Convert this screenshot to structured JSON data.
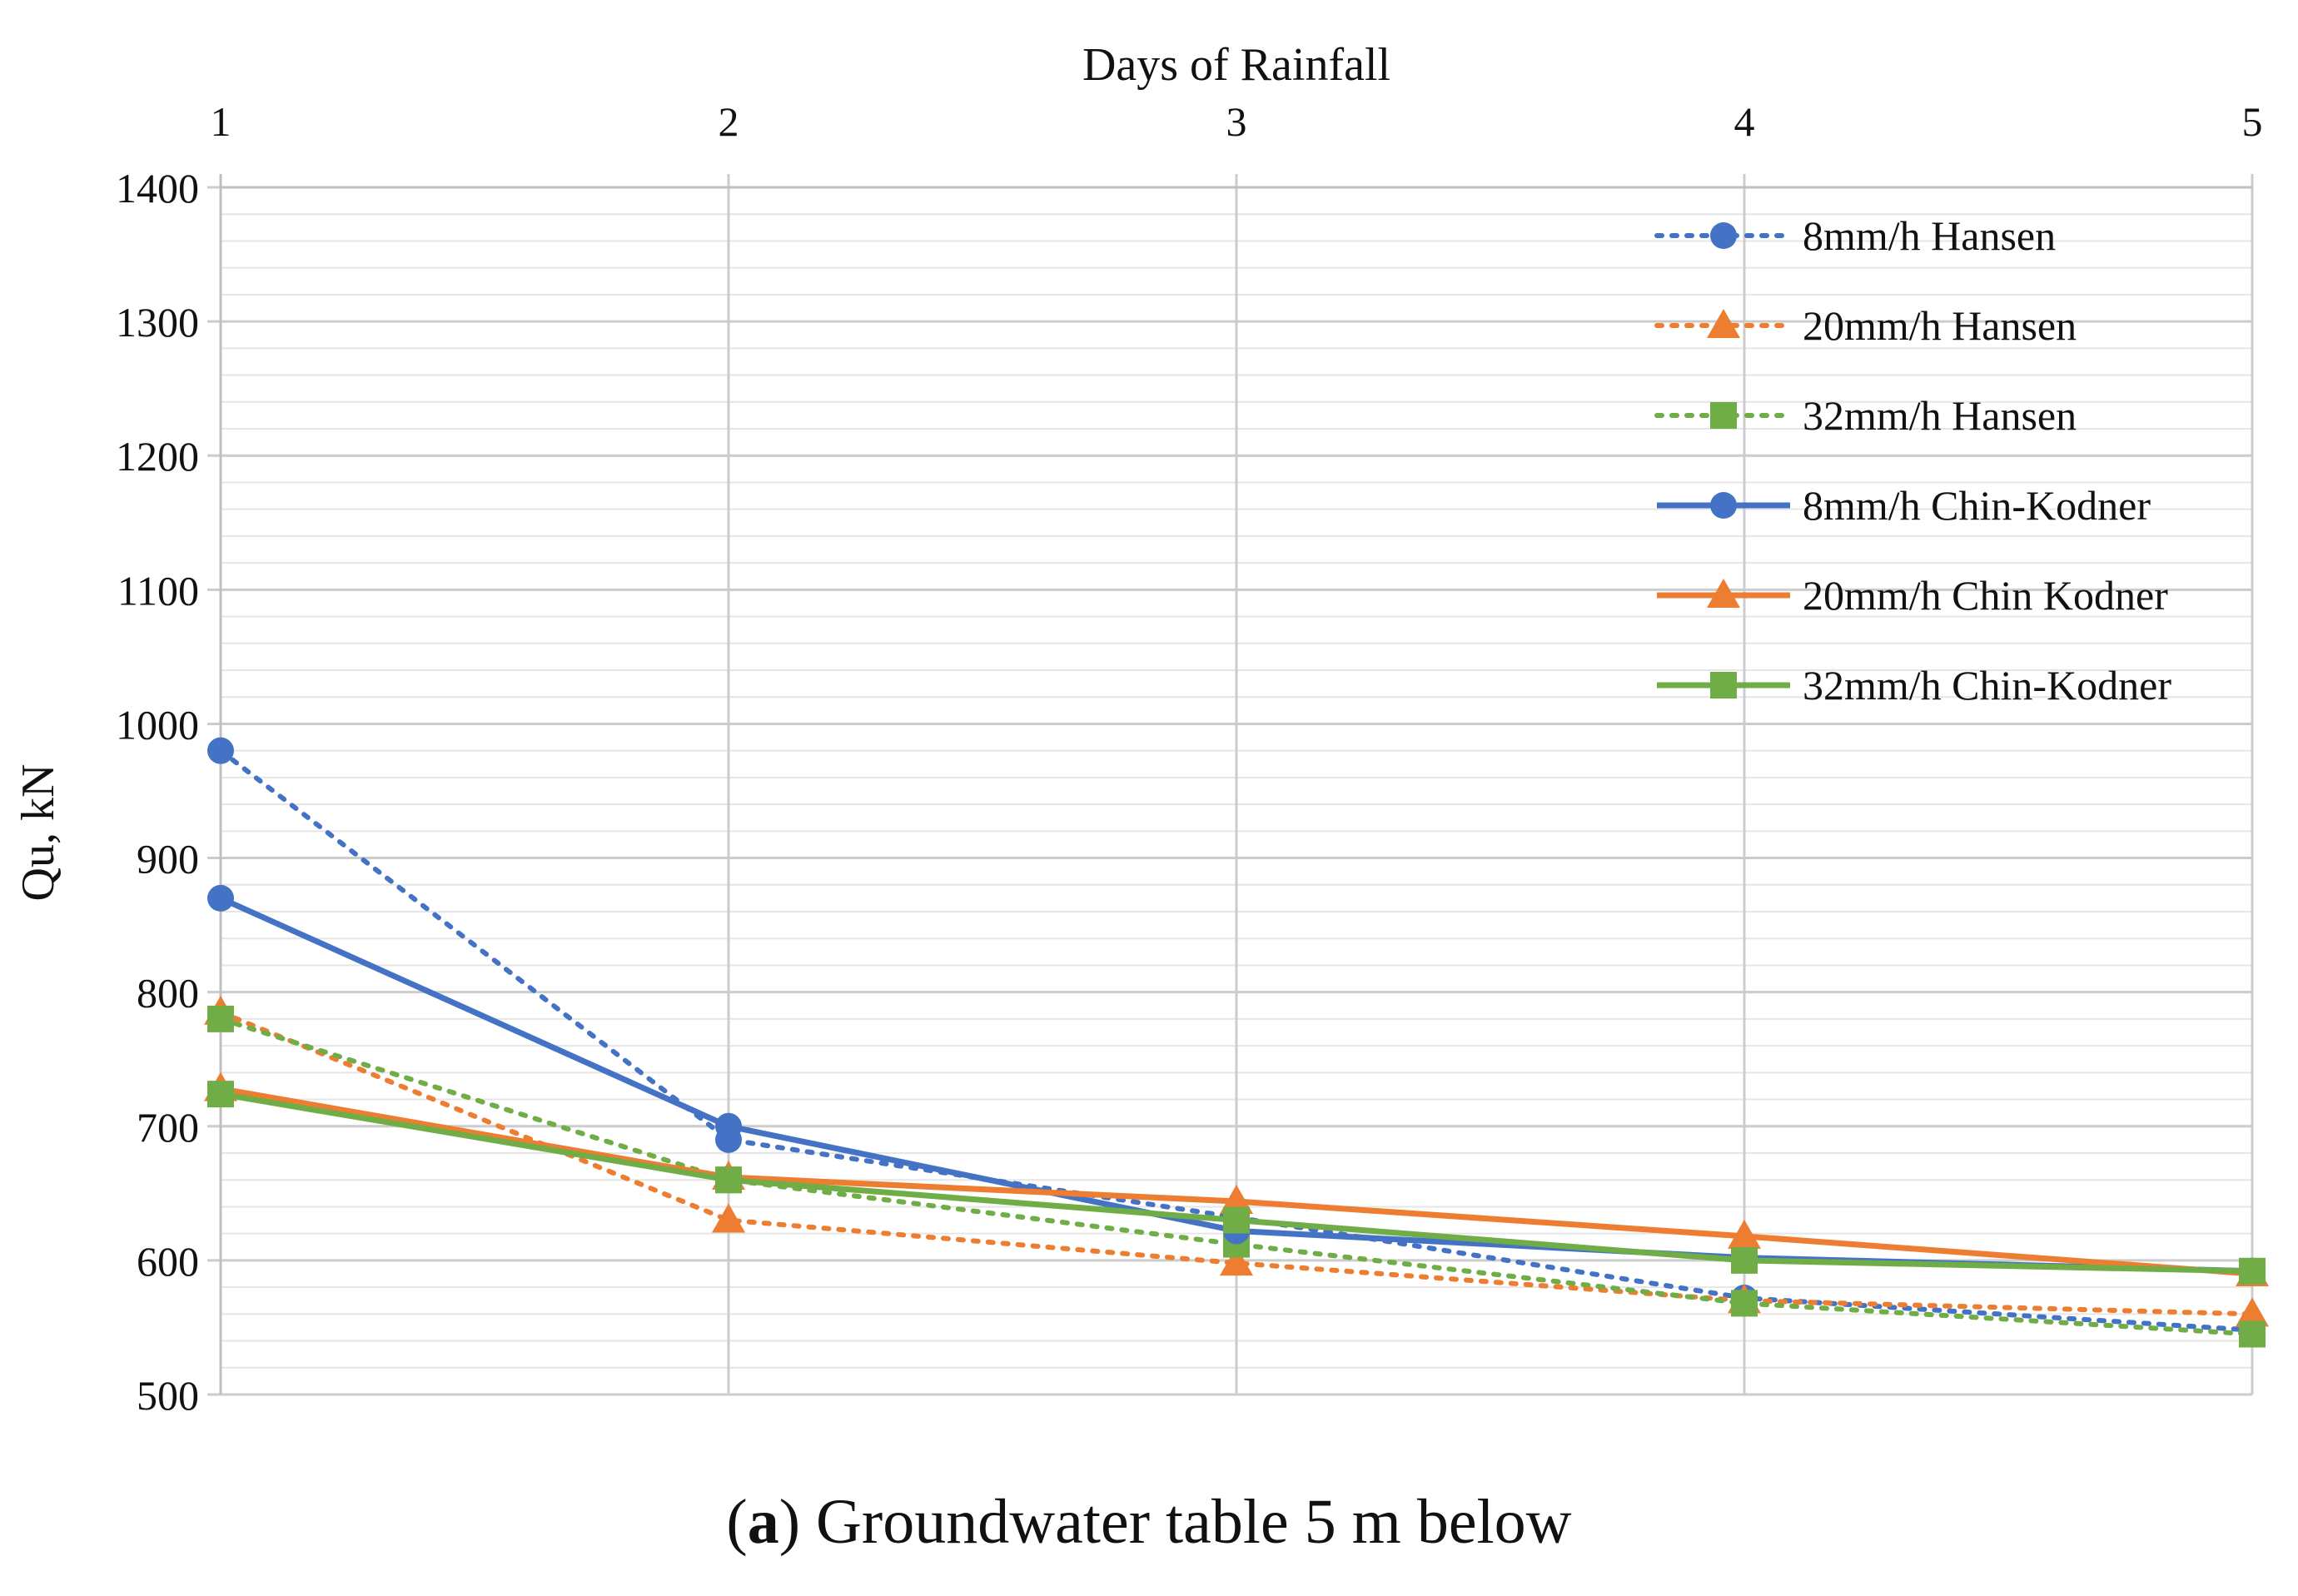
{
  "chart_data": {
    "type": "line",
    "title": "",
    "xlabel": "Days of Rainfall",
    "ylabel": "Qu, kN",
    "x": [
      1,
      2,
      3,
      4,
      5
    ],
    "xlim": [
      1,
      5
    ],
    "ylim": [
      500,
      1400
    ],
    "x_ticks": [
      "1",
      "2",
      "3",
      "4",
      "5"
    ],
    "y_ticks": [
      "500",
      "600",
      "700",
      "800",
      "900",
      "1000",
      "1100",
      "1200",
      "1300",
      "1400"
    ],
    "major_grid_step": 100,
    "minor_grid_step": 20,
    "x_axis_position": "top",
    "legend_position": "top-right",
    "colors": {
      "blue": "#4472C4",
      "orange": "#ED7D31",
      "green": "#70AD47"
    },
    "series": [
      {
        "name": "8mm/h Hansen",
        "values": [
          980,
          690,
          632,
          572,
          548
        ],
        "color": "#4472C4",
        "marker": "circle",
        "style": "dotted"
      },
      {
        "name": "20mm/h Hansen",
        "values": [
          785,
          630,
          598,
          570,
          560
        ],
        "color": "#ED7D31",
        "marker": "triangle",
        "style": "dotted"
      },
      {
        "name": "32mm/h Hansen",
        "values": [
          780,
          660,
          612,
          568,
          545
        ],
        "color": "#70AD47",
        "marker": "square",
        "style": "dotted"
      },
      {
        "name": "8mm/h Chin-Kodner",
        "values": [
          870,
          700,
          622,
          602,
          592
        ],
        "color": "#4472C4",
        "marker": "circle",
        "style": "solid"
      },
      {
        "name": "20mm/h Chin Kodner",
        "values": [
          728,
          662,
          644,
          618,
          590
        ],
        "color": "#ED7D31",
        "marker": "triangle",
        "style": "solid"
      },
      {
        "name": "32mm/h Chin-Kodner",
        "values": [
          724,
          660,
          630,
          600,
          592
        ],
        "color": "#70AD47",
        "marker": "square",
        "style": "solid"
      }
    ]
  },
  "caption": {
    "label": "a",
    "text": " Groundwater table 5 m below"
  }
}
